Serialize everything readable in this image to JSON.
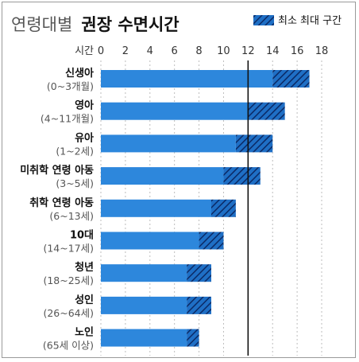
{
  "chart_data": {
    "type": "bar",
    "title": {
      "prefix": "연령대별",
      "main": "권장 수면시간"
    },
    "legend": {
      "label": "최소 최대 구간",
      "position": "top-right"
    },
    "xlabel": "시간",
    "xlim": [
      0,
      18
    ],
    "xticks": [
      "0",
      "2",
      "4",
      "6",
      "8",
      "10",
      "12",
      "14",
      "16",
      "18"
    ],
    "reference_line": 12,
    "categories": [
      {
        "name": "신생아",
        "range": "(0~3개월)"
      },
      {
        "name": "영아",
        "range": "(4~11개월)"
      },
      {
        "name": "유아",
        "range": "(1~2세)"
      },
      {
        "name": "미취학 연령 아동",
        "range": "(3~5세)"
      },
      {
        "name": "취학 연령 아동",
        "range": "(6~13세)"
      },
      {
        "name": "10대",
        "range": "(14~17세)"
      },
      {
        "name": "청년",
        "range": "(18~25세)"
      },
      {
        "name": "성인",
        "range": "(26~64세)"
      },
      {
        "name": "노인",
        "range": "(65세 이상)"
      }
    ],
    "min": [
      14,
      12,
      11,
      10,
      9,
      8,
      7,
      7,
      7
    ],
    "max": [
      17,
      15,
      14,
      13,
      11,
      10,
      9,
      9,
      8
    ],
    "colors": {
      "bar": "#2d87dc",
      "hatch_bg": "#1f6fc5",
      "hatch_line": "#0b2a66",
      "reference_line": "#111111",
      "grid": "#bdbdbd"
    },
    "grid": true
  }
}
